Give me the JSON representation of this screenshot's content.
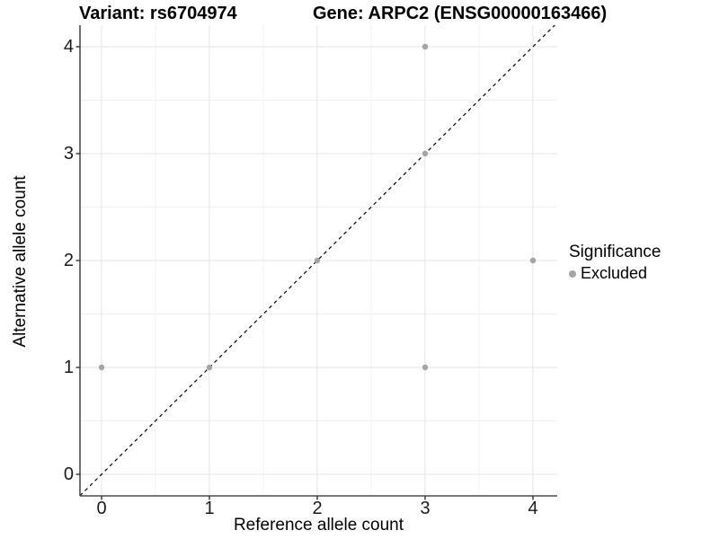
{
  "titles": {
    "variant": "Variant: rs6704974",
    "gene": "Gene: ARPC2 (ENSG00000163466)"
  },
  "axes": {
    "x_label": "Reference allele count",
    "y_label": "Alternative allele count"
  },
  "legend": {
    "title": "Significance",
    "items": [
      {
        "label": "Excluded",
        "color": "#a4a4a4"
      }
    ]
  },
  "colors": {
    "point": "#a4a4a4",
    "grid_major": "#e3e3e3",
    "grid_minor": "#f0f0f0",
    "axis_line": "#4d4d4d",
    "tick_mark": "#333333",
    "identity_line": "#000000",
    "panel_background": "#ffffff"
  },
  "chart_data": {
    "type": "scatter",
    "title": "Variant: rs6704974   |   Gene: ARPC2 (ENSG00000163466)",
    "xlabel": "Reference allele count",
    "ylabel": "Alternative allele count",
    "xlim": [
      -0.2,
      4.2
    ],
    "ylim": [
      -0.2,
      4.2
    ],
    "x_ticks": [
      0,
      1,
      2,
      3,
      4
    ],
    "y_ticks": [
      0,
      1,
      2,
      3,
      4
    ],
    "grid": "major and minor (0.5 steps)",
    "legend_position": "right",
    "series": [
      {
        "name": "Excluded",
        "color": "#a4a4a4",
        "points": [
          [
            0,
            1
          ],
          [
            1,
            1
          ],
          [
            2,
            2
          ],
          [
            3,
            1
          ],
          [
            3,
            3
          ],
          [
            3,
            4
          ],
          [
            4,
            2
          ]
        ]
      }
    ],
    "reference_line": {
      "style": "dashed",
      "description": "identity line y = x spanning full panel",
      "from": [
        -0.2,
        -0.2
      ],
      "to": [
        4.225,
        4.225
      ]
    }
  }
}
